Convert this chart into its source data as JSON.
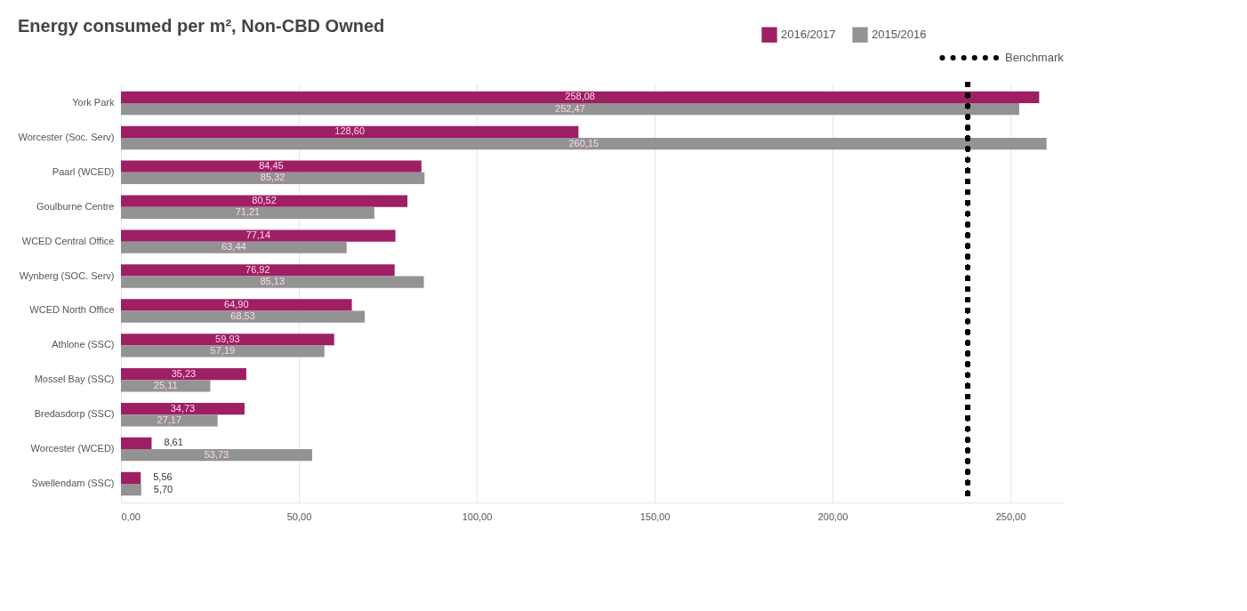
{
  "chart_data": {
    "type": "bar",
    "orientation": "horizontal",
    "title": "Energy consumed per m², Non-CBD Owned",
    "categories": [
      "York Park",
      "Worcester (Soc. Serv)",
      "Paarl (WCED)",
      "Goulburne Centre",
      "WCED Central Office",
      "Wynberg (SOC. Serv)",
      "WCED North Office",
      "Athlone (SSC)",
      "Mossel Bay (SSC)",
      "Bredasdorp (SSC)",
      "Worcester (WCED)",
      "Swellendam (SSC)"
    ],
    "series": [
      {
        "name": "2016/2017",
        "color": "#9e1f63",
        "values": [
          258.08,
          128.6,
          84.45,
          80.52,
          77.14,
          76.92,
          64.9,
          59.93,
          35.23,
          34.73,
          8.61,
          5.56
        ],
        "value_labels": [
          "258,08",
          "128,60",
          "84,45",
          "80,52",
          "77,14",
          "76,92",
          "64,90",
          "59,93",
          "35,23",
          "34,73",
          "8,61",
          "5,56"
        ]
      },
      {
        "name": "2015/2016",
        "color": "#939393",
        "values": [
          252.47,
          260.15,
          85.32,
          71.21,
          63.44,
          85.13,
          68.53,
          57.19,
          25.11,
          27.17,
          53.73,
          5.7
        ],
        "value_labels": [
          "252,47",
          "260,15",
          "85,32",
          "71,21",
          "63,44",
          "85,13",
          "68,53",
          "57,19",
          "25,11",
          "27,17",
          "53,73",
          "5,70"
        ]
      }
    ],
    "ref_lines": [
      {
        "axis": "x",
        "value": 238,
        "label": "Benchmark",
        "color": "#000000",
        "line_style": "dotted"
      }
    ],
    "xlim": [
      0,
      265
    ],
    "xticks": [
      {
        "value": 0,
        "label": "0,00"
      },
      {
        "value": 50,
        "label": "50,00"
      },
      {
        "value": 100,
        "label": "100,00"
      },
      {
        "value": 150,
        "label": "150,00"
      },
      {
        "value": 200,
        "label": "200,00"
      },
      {
        "value": 250,
        "label": "250,00"
      }
    ],
    "grid": "x",
    "legend": "top right"
  }
}
